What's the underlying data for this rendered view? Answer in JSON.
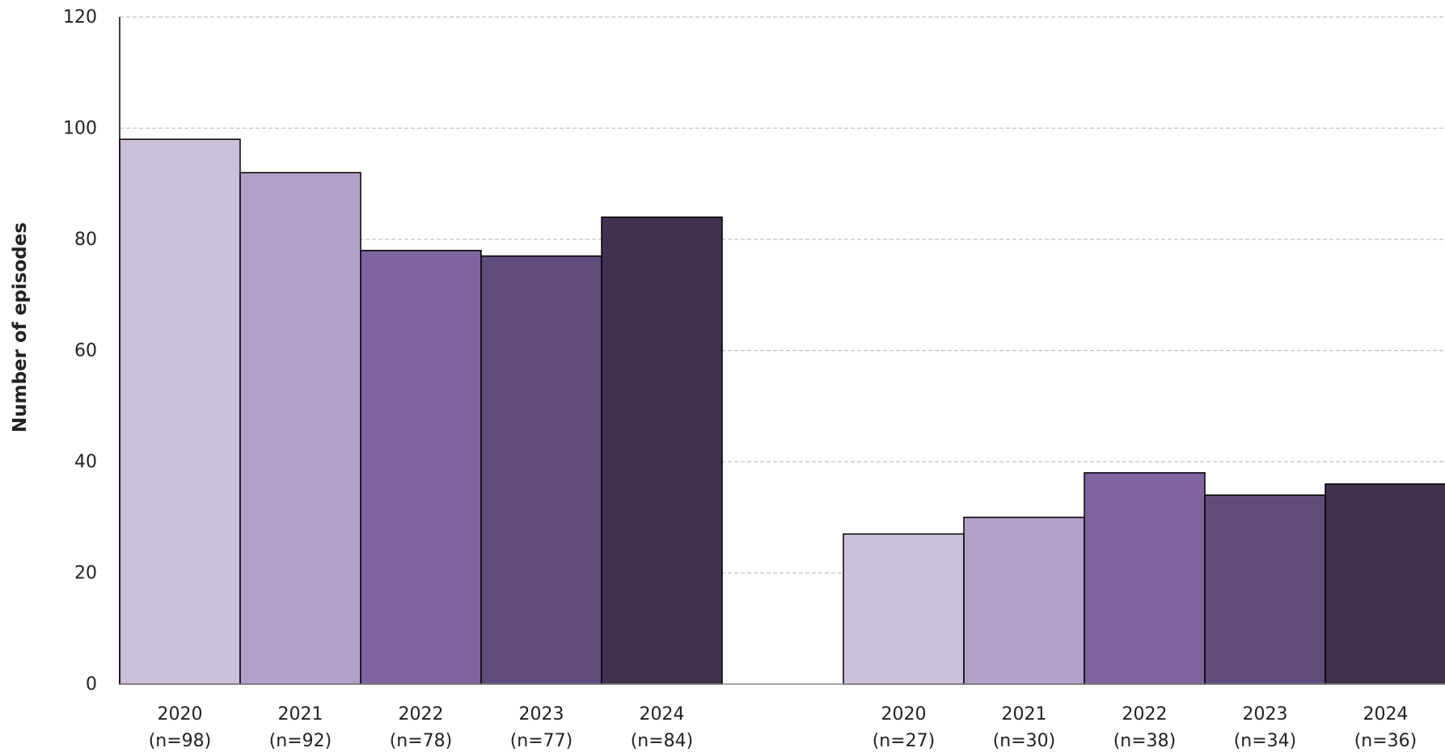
{
  "chart_data": {
    "type": "bar",
    "ylabel": "Number of episodes",
    "ylim": [
      0,
      120
    ],
    "yticks": [
      0,
      20,
      40,
      60,
      80,
      100,
      120
    ],
    "grid": true,
    "groups": [
      {
        "bars": [
          {
            "year": "2020",
            "n_label": "(n=98)",
            "value": 98
          },
          {
            "year": "2021",
            "n_label": "(n=92)",
            "value": 92
          },
          {
            "year": "2022",
            "n_label": "(n=78)",
            "value": 78
          },
          {
            "year": "2023",
            "n_label": "(n=77)",
            "value": 77
          },
          {
            "year": "2024",
            "n_label": "(n=84)",
            "value": 84
          }
        ]
      },
      {
        "bars": [
          {
            "year": "2020",
            "n_label": "(n=27)",
            "value": 27
          },
          {
            "year": "2021",
            "n_label": "(n=30)",
            "value": 30
          },
          {
            "year": "2022",
            "n_label": "(n=38)",
            "value": 38
          },
          {
            "year": "2023",
            "n_label": "(n=34)",
            "value": 34
          },
          {
            "year": "2024",
            "n_label": "(n=36)",
            "value": 36
          }
        ]
      }
    ],
    "year_colors": {
      "2020": "#cbc1da",
      "2021": "#b1a1c7",
      "2022": "#7f649f",
      "2023": "#604c7b",
      "2024": "#403151"
    },
    "gridline_color": "#bfbfbf",
    "bar_outline_color": "#000000"
  }
}
